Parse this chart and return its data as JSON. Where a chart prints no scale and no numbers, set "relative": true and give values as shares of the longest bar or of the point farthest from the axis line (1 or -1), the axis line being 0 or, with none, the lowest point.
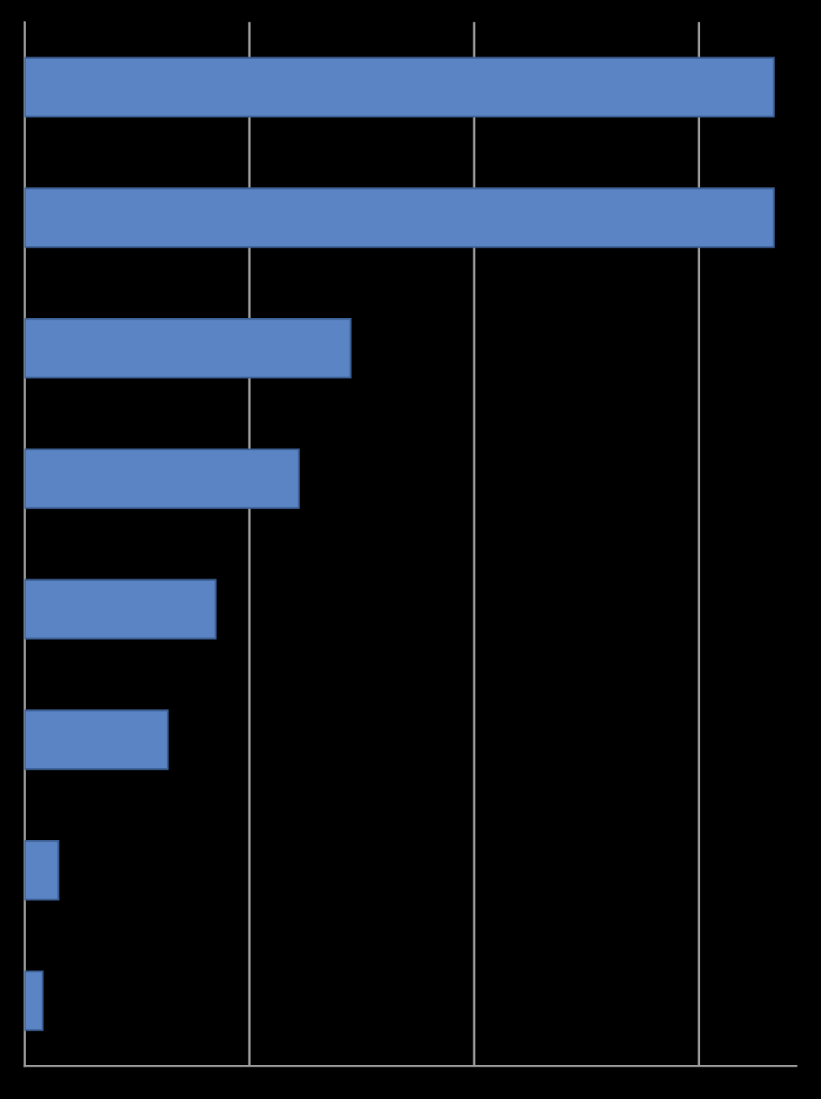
{
  "chart_data": {
    "type": "bar",
    "orientation": "horizontal",
    "relative": true,
    "categories": [
      null,
      null,
      null,
      null,
      null,
      null,
      null,
      null
    ],
    "values": [
      1,
      1,
      0.435,
      0.366,
      0.255,
      0.191,
      0.045,
      0.024
    ],
    "color": "#5b84c4",
    "grid": "x"
  }
}
